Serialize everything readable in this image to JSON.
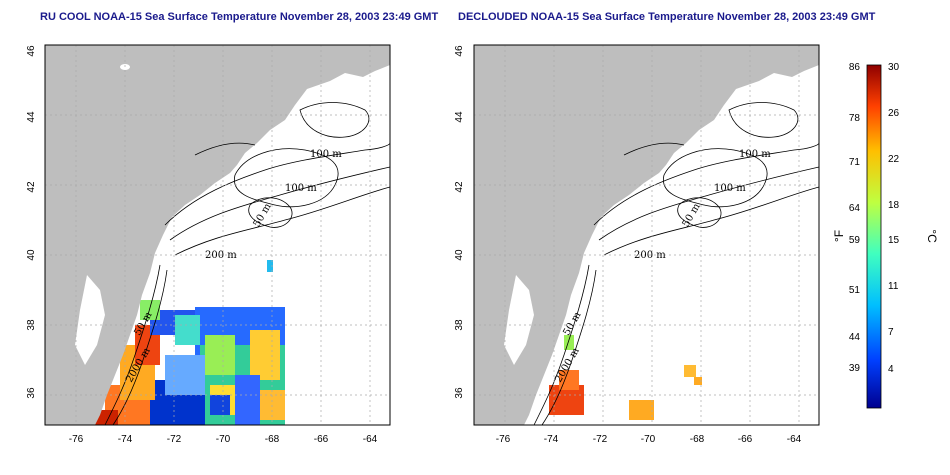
{
  "titles": {
    "left": "RU COOL NOAA-15 Sea Surface Temperature November 28, 2003 23:49 GMT",
    "right": "DECLOUDED NOAA-15 Sea Surface Temperature November 28, 2003 23:49 GMT"
  },
  "axes": {
    "lat_ticks": [
      "46",
      "44",
      "42",
      "40",
      "38",
      "36"
    ],
    "lon_ticks": [
      "-76",
      "-74",
      "-72",
      "-70",
      "-68",
      "-66",
      "-64"
    ]
  },
  "contour_labels": {
    "left": [
      "100 m",
      "100 m",
      "50 m",
      "200 m",
      "50 m",
      "2000 m"
    ],
    "right": [
      "100 m",
      "100 m",
      "50 m",
      "200 m",
      "50 m",
      "2000 m"
    ]
  },
  "colorbar": {
    "fahrenheit_ticks": [
      "86",
      "78",
      "71",
      "64",
      "59",
      "51",
      "44",
      "39"
    ],
    "celsius_ticks": [
      "30",
      "26",
      "22",
      "18",
      "15",
      "11",
      "7",
      "4"
    ],
    "fahrenheit_label": "°F",
    "celsius_label": "°C",
    "colors": [
      "#00008f",
      "#0040ff",
      "#00bfff",
      "#40ffbf",
      "#bfff40",
      "#ffbf00",
      "#ff4000",
      "#8f0000"
    ]
  },
  "colors": {
    "land": "#bebebe",
    "sea": "#ffffff",
    "title": "#1a1a8c",
    "grid": "#aaaaaa"
  }
}
